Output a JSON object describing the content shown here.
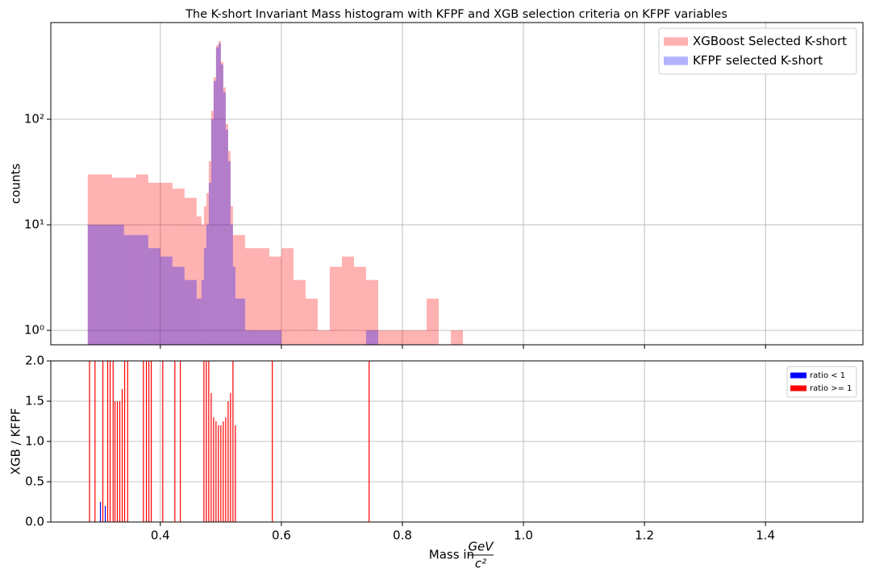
{
  "chart_data": [
    {
      "type": "histogram",
      "title": "The K-short Invariant Mass histogram with KFPF and XGB selection criteria on KFPF variables",
      "ylabel": "counts",
      "bins": [
        0.28,
        0.3,
        0.32,
        0.34,
        0.36,
        0.38,
        0.4,
        0.42,
        0.44,
        0.46,
        0.468,
        0.472,
        0.476,
        0.48,
        0.484,
        0.488,
        0.492,
        0.496,
        0.5,
        0.504,
        0.508,
        0.512,
        0.516,
        0.52,
        0.524,
        0.54,
        0.56,
        0.58,
        0.6,
        0.62,
        0.64,
        0.66,
        0.68,
        0.7,
        0.72,
        0.74,
        0.76,
        0.78,
        0.8,
        0.82,
        0.84,
        0.86,
        0.88,
        0.9
      ],
      "series": [
        {
          "name": "XGBoost Selected K-short",
          "color": "#ff0000",
          "alpha": 0.3,
          "values": [
            30,
            30,
            28,
            28,
            30,
            25,
            25,
            22,
            18,
            12,
            10,
            15,
            20,
            40,
            120,
            250,
            500,
            550,
            350,
            200,
            90,
            50,
            15,
            8,
            8,
            6,
            6,
            5,
            6,
            3,
            2,
            1,
            4,
            5,
            4,
            3,
            1,
            1,
            1,
            1,
            2,
            0,
            1
          ]
        },
        {
          "name": "KFPF selected K-short",
          "color": "#0000ff",
          "alpha": 0.3,
          "values": [
            10,
            10,
            10,
            8,
            8,
            6,
            5,
            4,
            3,
            2,
            3,
            6,
            10,
            25,
            100,
            230,
            480,
            520,
            330,
            180,
            80,
            40,
            10,
            4,
            2,
            1,
            1,
            1,
            0,
            0,
            0,
            0,
            0,
            0,
            0,
            1,
            0,
            0,
            0,
            0,
            0,
            0,
            0
          ]
        }
      ],
      "log_y": true,
      "grid": true,
      "legend": "upper right",
      "xlim": [
        0.219,
        1.561
      ],
      "xticks": [
        0.4,
        0.6,
        0.8,
        {
          "value": 1.0,
          "label": "1.0"
        },
        1.2,
        1.4
      ],
      "ylim": [
        0.73,
        824
      ],
      "yticks": [
        {
          "value": 1,
          "label": "10⁰"
        },
        {
          "value": 10,
          "label": "10¹"
        },
        {
          "value": 100,
          "label": "10²"
        }
      ]
    },
    {
      "type": "bar",
      "ylabel": "XGB / KFPF",
      "xlabel": {
        "text": "Mass in",
        "numerator": "GeV",
        "denominator": "c²"
      },
      "series": [
        {
          "name": "ratio < 1",
          "color": "#0000ff",
          "x": [
            0.301,
            0.309
          ],
          "values": [
            0.25,
            0.2
          ]
        },
        {
          "name": "ratio >= 1",
          "color": "#ff0000",
          "x": [
            0.283,
            0.292,
            0.305,
            0.313,
            0.317,
            0.322,
            0.325,
            0.329,
            0.333,
            0.337,
            0.341,
            0.346,
            0.372,
            0.377,
            0.381,
            0.385,
            0.404,
            0.424,
            0.433,
            0.472,
            0.476,
            0.48,
            0.484,
            0.488,
            0.492,
            0.496,
            0.5,
            0.504,
            0.508,
            0.512,
            0.516,
            0.52,
            0.524,
            0.585,
            0.745
          ],
          "values": [
            2,
            2,
            2,
            2,
            2,
            2,
            1.5,
            1.5,
            1.5,
            1.65,
            2,
            2,
            2,
            2,
            2,
            2,
            2,
            2,
            2,
            2,
            2,
            2,
            1.6,
            1.3,
            1.25,
            1.2,
            1.2,
            1.25,
            1.3,
            1.5,
            1.6,
            2,
            1.2,
            2,
            2
          ]
        }
      ],
      "grid": true,
      "legend": "upper right",
      "xlim": [
        0.219,
        1.561
      ],
      "xticks": [
        0.4,
        0.6,
        0.8,
        {
          "value": 1.0,
          "label": "1.0"
        },
        1.2,
        1.4
      ],
      "ylim": [
        0,
        2
      ],
      "yticks": [
        {
          "value": 0,
          "label": "0.0"
        },
        {
          "value": 0.5,
          "label": "0.5"
        },
        {
          "value": 1,
          "label": "1.0"
        },
        {
          "value": 1.5,
          "label": "1.5"
        },
        {
          "value": 2,
          "label": "2.0"
        }
      ]
    }
  ]
}
